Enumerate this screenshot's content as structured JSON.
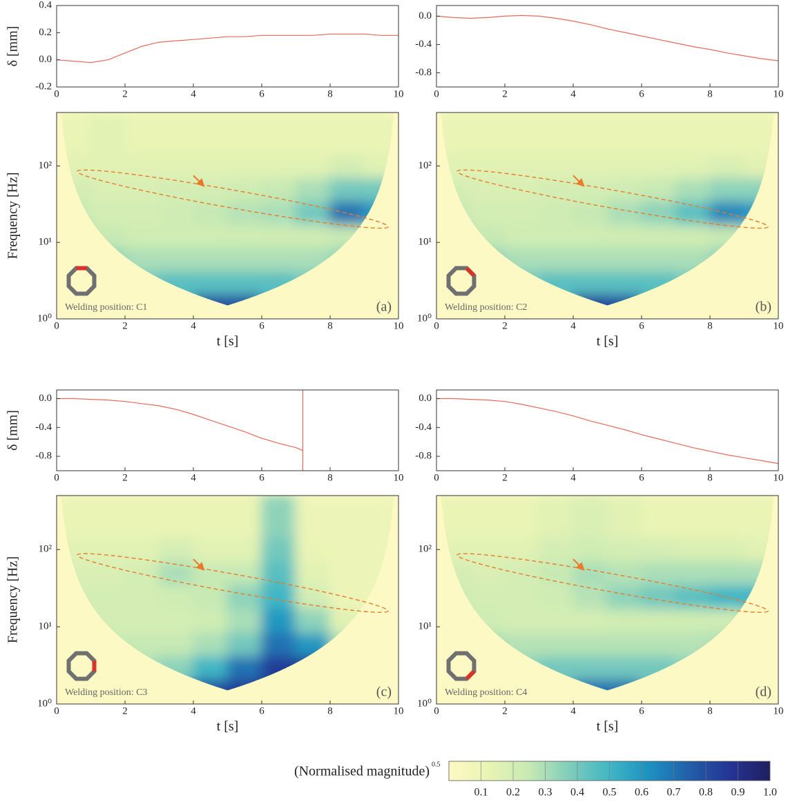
{
  "chart_data": [
    {
      "type": "line",
      "ylabel": "δ [mm]",
      "x": [
        0,
        0.5,
        1,
        1.5,
        2,
        2.5,
        3,
        3.5,
        4,
        4.5,
        5,
        5.5,
        6,
        6.5,
        7,
        7.5,
        8,
        8.5,
        9,
        9.5,
        10
      ],
      "values": [
        0,
        -0.01,
        -0.02,
        0.0,
        0.05,
        0.1,
        0.13,
        0.14,
        0.15,
        0.16,
        0.17,
        0.17,
        0.18,
        0.18,
        0.18,
        0.18,
        0.19,
        0.19,
        0.19,
        0.18,
        0.18
      ],
      "color": "#e8685a",
      "xlim": [
        0,
        10
      ],
      "ylim": [
        -0.2,
        0.4
      ],
      "xticks": [
        0,
        2,
        4,
        6,
        8,
        10
      ],
      "yticks": [
        -0.2,
        {
          "value": 0,
          "label": "0.0"
        },
        0.2,
        0.4
      ]
    },
    {
      "type": "heatmap",
      "ylabel": "Frequency [Hz]",
      "xlabel": "t [s]",
      "annotation": "Welding position: C1",
      "panel": "(a)",
      "log_y": true,
      "xlim": [
        0,
        10
      ],
      "ylim": [
        1,
        500
      ],
      "xticks": [
        0,
        2,
        4,
        6,
        8,
        10
      ],
      "yticks": [
        {
          "value": 1,
          "label": "10⁰"
        },
        {
          "value": 10,
          "label": "10¹"
        },
        {
          "value": 100,
          "label": "10²"
        }
      ],
      "x": [
        0.5,
        1.5,
        2.5,
        3.5,
        4.5,
        5.5,
        6.5,
        7.5,
        8.5,
        9.5
      ],
      "y": [
        1.5,
        3,
        6,
        12,
        25,
        50,
        100,
        200
      ],
      "z": [
        [
          0.1,
          0.1,
          0.1,
          0.5,
          0.8,
          0.8,
          0.5,
          0.1,
          0.1,
          0.1
        ],
        [
          0.1,
          0.1,
          0.4,
          0.45,
          0.45,
          0.45,
          0.45,
          0.4,
          0.1,
          0.1
        ],
        [
          0.1,
          0.35,
          0.3,
          0.3,
          0.3,
          0.3,
          0.3,
          0.3,
          0.35,
          0.1
        ],
        [
          0.3,
          0.25,
          0.22,
          0.22,
          0.22,
          0.22,
          0.22,
          0.22,
          0.25,
          0.3
        ],
        [
          0.25,
          0.2,
          0.2,
          0.22,
          0.25,
          0.28,
          0.3,
          0.4,
          0.7,
          0.6
        ],
        [
          0.2,
          0.18,
          0.18,
          0.2,
          0.2,
          0.22,
          0.25,
          0.3,
          0.4,
          0.4
        ],
        [
          0.15,
          0.15,
          0.15,
          0.15,
          0.15,
          0.15,
          0.15,
          0.15,
          0.2,
          0.15
        ],
        [
          0.12,
          0.15,
          0.12,
          0.12,
          0.12,
          0.12,
          0.12,
          0.12,
          0.12,
          0.12
        ]
      ]
    },
    {
      "type": "line",
      "x": [
        0,
        0.5,
        1,
        1.5,
        2,
        2.5,
        3,
        3.5,
        4,
        4.5,
        5,
        5.5,
        6,
        6.5,
        7,
        7.5,
        8,
        8.5,
        9,
        9.5,
        10
      ],
      "values": [
        0,
        -0.02,
        -0.03,
        -0.02,
        0,
        0.01,
        0,
        -0.03,
        -0.07,
        -0.12,
        -0.18,
        -0.23,
        -0.28,
        -0.33,
        -0.38,
        -0.43,
        -0.47,
        -0.52,
        -0.56,
        -0.6,
        -0.63
      ],
      "color": "#e8685a",
      "xlim": [
        0,
        10
      ],
      "ylim": [
        -1.0,
        0.15
      ],
      "xticks": [
        0,
        2,
        4,
        6,
        8,
        10
      ],
      "yticks": [
        {
          "value": 0,
          "label": "0.0"
        },
        -0.4,
        -0.8
      ]
    },
    {
      "type": "heatmap",
      "xlabel": "t [s]",
      "annotation": "Welding position: C2",
      "panel": "(b)",
      "log_y": true,
      "xlim": [
        0,
        10
      ],
      "ylim": [
        1,
        500
      ],
      "xticks": [
        0,
        2,
        4,
        6,
        8,
        10
      ],
      "yticks": [
        {
          "value": 1,
          "label": "10⁰"
        },
        {
          "value": 10,
          "label": "10¹"
        },
        {
          "value": 100,
          "label": "10²"
        }
      ],
      "x": [
        0.5,
        1.5,
        2.5,
        3.5,
        4.5,
        5.5,
        6.5,
        7.5,
        8.5,
        9.5
      ],
      "y": [
        1.5,
        3,
        6,
        12,
        25,
        50,
        100,
        200
      ],
      "z": [
        [
          0.1,
          0.1,
          0.1,
          0.5,
          0.85,
          0.8,
          0.5,
          0.1,
          0.1,
          0.1
        ],
        [
          0.1,
          0.1,
          0.4,
          0.45,
          0.45,
          0.45,
          0.45,
          0.4,
          0.1,
          0.1
        ],
        [
          0.1,
          0.35,
          0.3,
          0.3,
          0.3,
          0.3,
          0.3,
          0.3,
          0.35,
          0.1
        ],
        [
          0.3,
          0.25,
          0.22,
          0.22,
          0.22,
          0.22,
          0.22,
          0.22,
          0.25,
          0.3
        ],
        [
          0.25,
          0.2,
          0.2,
          0.22,
          0.25,
          0.3,
          0.35,
          0.45,
          0.65,
          0.6
        ],
        [
          0.2,
          0.18,
          0.18,
          0.2,
          0.2,
          0.22,
          0.25,
          0.3,
          0.35,
          0.35
        ],
        [
          0.15,
          0.15,
          0.15,
          0.15,
          0.15,
          0.15,
          0.15,
          0.15,
          0.18,
          0.15
        ],
        [
          0.12,
          0.12,
          0.12,
          0.12,
          0.12,
          0.12,
          0.12,
          0.12,
          0.12,
          0.12
        ]
      ]
    },
    {
      "type": "line",
      "ylabel": "δ [mm]",
      "x": [
        0,
        0.5,
        1,
        1.5,
        2,
        2.5,
        3,
        3.5,
        4,
        4.5,
        5,
        5.5,
        6,
        6.5,
        7,
        7.2
      ],
      "values": [
        0,
        0,
        -0.01,
        -0.02,
        -0.04,
        -0.07,
        -0.1,
        -0.15,
        -0.22,
        -0.3,
        -0.38,
        -0.46,
        -0.55,
        -0.62,
        -0.68,
        -0.72
      ],
      "vline": 7.2,
      "color": "#e8685a",
      "xlim": [
        0,
        10
      ],
      "ylim": [
        -1.0,
        0.12
      ],
      "xticks": [
        0,
        2,
        4,
        6,
        8,
        10
      ],
      "yticks": [
        {
          "value": 0,
          "label": "0.0"
        },
        -0.4,
        -0.8
      ]
    },
    {
      "type": "heatmap",
      "ylabel": "Frequency [Hz]",
      "xlabel": "t [s]",
      "annotation": "Welding position: C3",
      "panel": "(c)",
      "log_y": true,
      "xlim": [
        0,
        10
      ],
      "ylim": [
        1,
        500
      ],
      "xticks": [
        0,
        2,
        4,
        6,
        8,
        10
      ],
      "yticks": [
        {
          "value": 1,
          "label": "10⁰"
        },
        {
          "value": 10,
          "label": "10¹"
        },
        {
          "value": 100,
          "label": "10²"
        }
      ],
      "x": [
        0.5,
        1.5,
        2.5,
        3.5,
        4.5,
        5.5,
        6.5,
        7.5,
        8.5,
        9.5
      ],
      "y": [
        1.5,
        3,
        6,
        12,
        25,
        50,
        100,
        200
      ],
      "z": [
        [
          0.1,
          0.1,
          0.1,
          0.6,
          0.8,
          0.85,
          0.9,
          0.9,
          0.8,
          0.1
        ],
        [
          0.1,
          0.1,
          0.3,
          0.35,
          0.5,
          0.7,
          0.85,
          0.85,
          0.7,
          0.3
        ],
        [
          0.1,
          0.25,
          0.25,
          0.25,
          0.3,
          0.4,
          0.7,
          0.6,
          0.3,
          0.15
        ],
        [
          0.2,
          0.2,
          0.2,
          0.2,
          0.22,
          0.3,
          0.6,
          0.35,
          0.15,
          0.1
        ],
        [
          0.2,
          0.2,
          0.2,
          0.22,
          0.25,
          0.35,
          0.5,
          0.2,
          0.1,
          0.1
        ],
        [
          0.18,
          0.18,
          0.2,
          0.3,
          0.25,
          0.25,
          0.45,
          0.15,
          0.1,
          0.1
        ],
        [
          0.15,
          0.15,
          0.15,
          0.2,
          0.15,
          0.15,
          0.4,
          0.12,
          0.1,
          0.1
        ],
        [
          0.12,
          0.12,
          0.12,
          0.12,
          0.12,
          0.12,
          0.35,
          0.1,
          0.1,
          0.1
        ]
      ]
    },
    {
      "type": "line",
      "x": [
        0,
        0.5,
        1,
        1.5,
        2,
        2.5,
        3,
        3.5,
        4,
        4.5,
        5,
        5.5,
        6,
        6.5,
        7,
        7.5,
        8,
        8.5,
        9,
        9.5,
        10
      ],
      "values": [
        0,
        0,
        -0.01,
        -0.02,
        -0.04,
        -0.08,
        -0.13,
        -0.18,
        -0.24,
        -0.31,
        -0.37,
        -0.43,
        -0.5,
        -0.56,
        -0.62,
        -0.68,
        -0.73,
        -0.78,
        -0.82,
        -0.86,
        -0.9
      ],
      "color": "#e8685a",
      "xlim": [
        0,
        10
      ],
      "ylim": [
        -1.0,
        0.12
      ],
      "xticks": [
        0,
        2,
        4,
        6,
        8,
        10
      ],
      "yticks": [
        {
          "value": 0,
          "label": "0.0"
        },
        -0.4,
        -0.8
      ]
    },
    {
      "type": "heatmap",
      "xlabel": "t [s]",
      "annotation": "Welding position: C4",
      "panel": "(d)",
      "log_y": true,
      "xlim": [
        0,
        10
      ],
      "ylim": [
        1,
        500
      ],
      "xticks": [
        0,
        2,
        4,
        6,
        8,
        10
      ],
      "yticks": [
        {
          "value": 1,
          "label": "10⁰"
        },
        {
          "value": 10,
          "label": "10¹"
        },
        {
          "value": 100,
          "label": "10²"
        }
      ],
      "x": [
        0.5,
        1.5,
        2.5,
        3.5,
        4.5,
        5.5,
        6.5,
        7.5,
        8.5,
        9.5
      ],
      "y": [
        1.5,
        3,
        6,
        12,
        25,
        50,
        100,
        200
      ],
      "z": [
        [
          0.1,
          0.1,
          0.1,
          0.45,
          0.7,
          0.7,
          0.45,
          0.1,
          0.1,
          0.1
        ],
        [
          0.1,
          0.1,
          0.35,
          0.4,
          0.4,
          0.4,
          0.4,
          0.35,
          0.1,
          0.1
        ],
        [
          0.1,
          0.3,
          0.28,
          0.28,
          0.28,
          0.28,
          0.28,
          0.28,
          0.3,
          0.1
        ],
        [
          0.3,
          0.22,
          0.2,
          0.2,
          0.2,
          0.22,
          0.22,
          0.22,
          0.22,
          0.3
        ],
        [
          0.22,
          0.2,
          0.2,
          0.22,
          0.28,
          0.35,
          0.4,
          0.45,
          0.5,
          0.5
        ],
        [
          0.2,
          0.18,
          0.2,
          0.25,
          0.3,
          0.28,
          0.3,
          0.3,
          0.3,
          0.3
        ],
        [
          0.15,
          0.15,
          0.15,
          0.2,
          0.22,
          0.2,
          0.2,
          0.18,
          0.18,
          0.15
        ],
        [
          0.12,
          0.12,
          0.12,
          0.15,
          0.18,
          0.15,
          0.12,
          0.12,
          0.12,
          0.12
        ]
      ]
    }
  ],
  "colorbar": {
    "label": "(Normalised magnitude)",
    "exponent": "0.5",
    "lim": [
      0,
      1
    ],
    "ticks": [
      0.1,
      0.2,
      0.3,
      0.4,
      0.5,
      0.6,
      0.7,
      0.8,
      0.9,
      {
        "value": 1,
        "label": "1.0"
      }
    ]
  }
}
